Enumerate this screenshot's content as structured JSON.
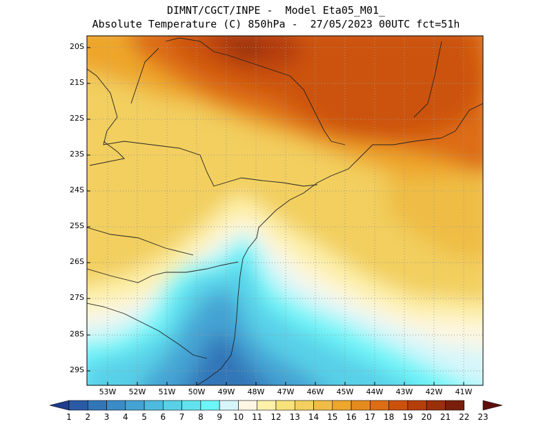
{
  "header": {
    "line1": "DIMNT/CGCT/INPE -  Model Eta05_M01_",
    "line2": "Absolute Temperature (C) 850hPa -  27/05/2023 00UTC fct=51h"
  },
  "map": {
    "lat_labels": [
      "20S",
      "21S",
      "22S",
      "23S",
      "24S",
      "25S",
      "26S",
      "27S",
      "28S",
      "29S"
    ],
    "lon_labels": [
      "53W",
      "52W",
      "51W",
      "50W",
      "49W",
      "48W",
      "47W",
      "46W",
      "45W",
      "44W",
      "43W",
      "42W",
      "41W"
    ]
  },
  "colorbar": {
    "labels": [
      "1",
      "2",
      "3",
      "4",
      "5",
      "6",
      "7",
      "8",
      "9",
      "10",
      "11",
      "12",
      "13",
      "14",
      "15",
      "16",
      "17",
      "18",
      "19",
      "20",
      "21",
      "22",
      "23"
    ],
    "colors": [
      "#1f3d8c",
      "#2a5aa6",
      "#3276b8",
      "#3a8cc6",
      "#45a3d3",
      "#4fbadf",
      "#59d0e8",
      "#62e2ef",
      "#6ef5f8",
      "#d6f6fb",
      "#fdf6e3",
      "#fdf0a8",
      "#f8e27a",
      "#f2cf5e",
      "#efbd45",
      "#eea62b",
      "#e58b1e",
      "#dd6d14",
      "#cc520c",
      "#b63e0a",
      "#983009",
      "#7a1f0b",
      "#5e0f0c"
    ],
    "range": [
      1,
      23
    ]
  }
}
